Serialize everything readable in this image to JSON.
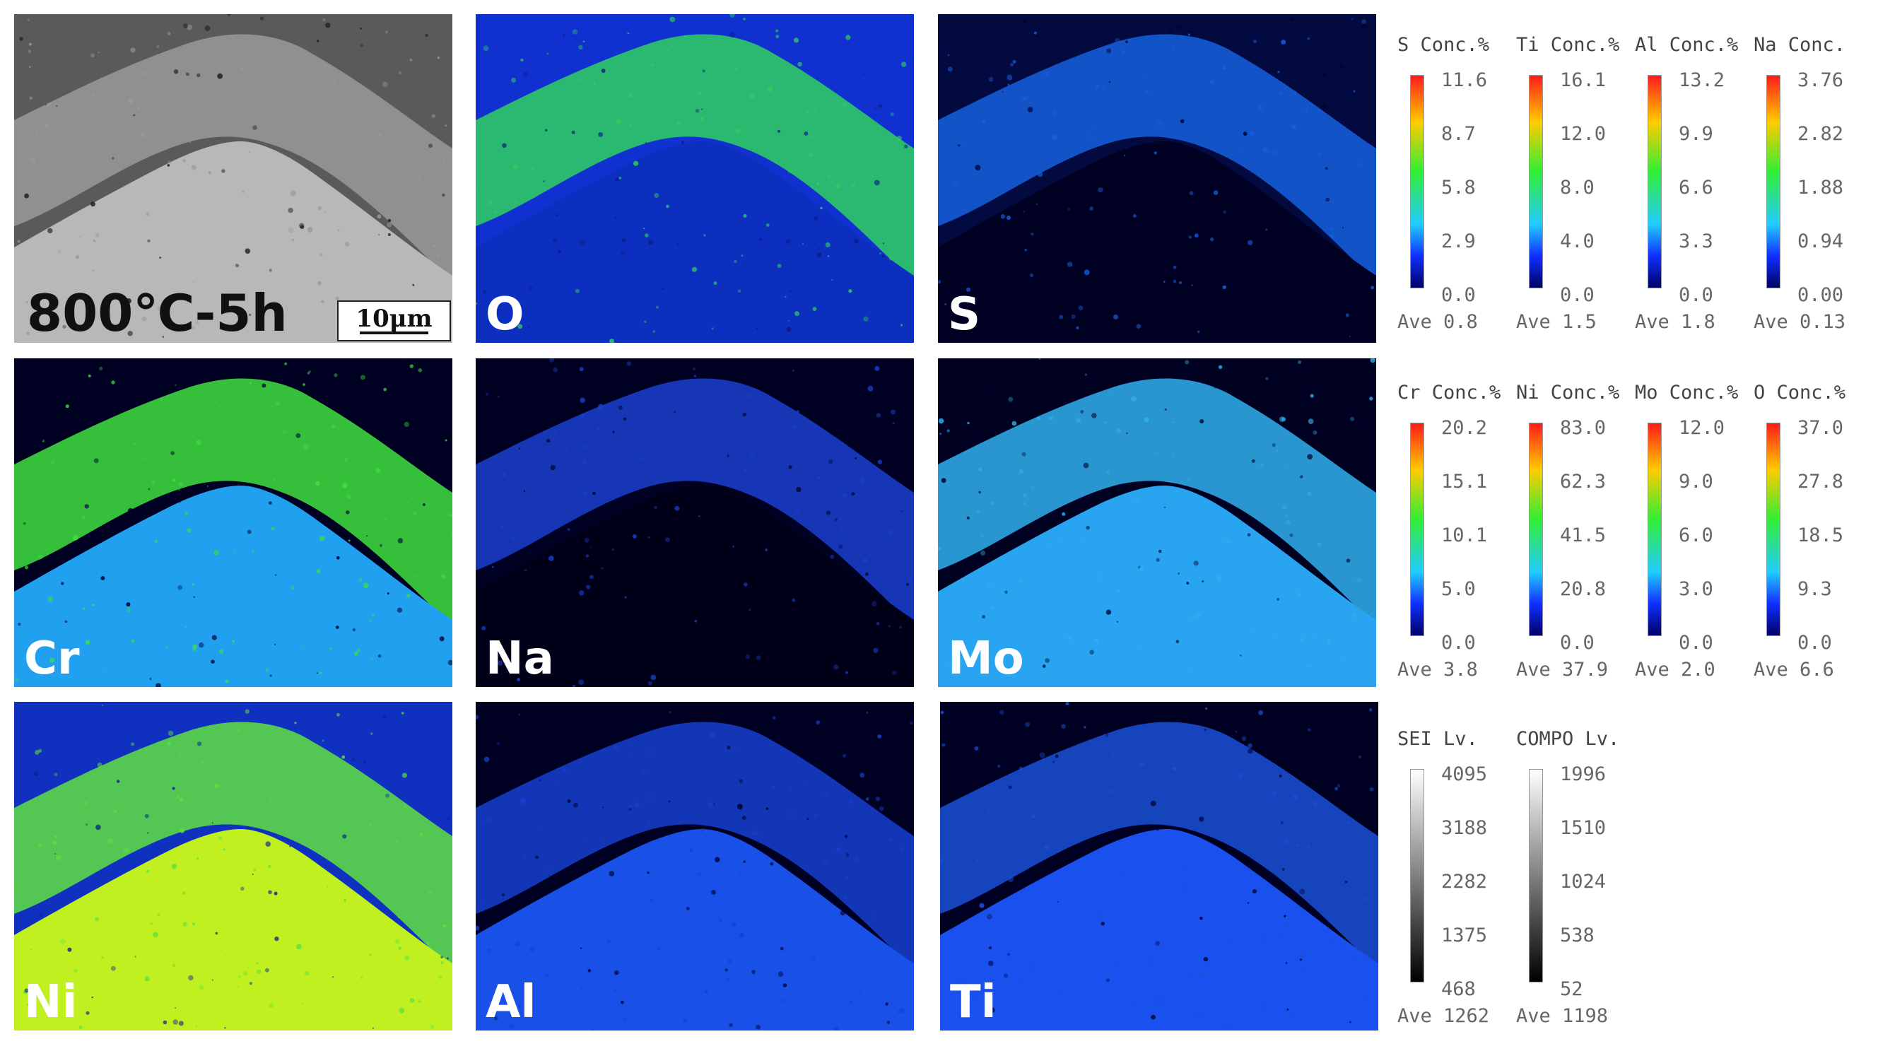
{
  "panels": [
    {
      "label": "800℃-5h",
      "scale_bar": "10μm",
      "palette": "sem"
    },
    {
      "label": "O",
      "palette": "o"
    },
    {
      "label": "S",
      "palette": "s"
    },
    {
      "label": "Cr",
      "palette": "cr"
    },
    {
      "label": "Na",
      "palette": "na"
    },
    {
      "label": "Mo",
      "palette": "mo"
    },
    {
      "label": "Ni",
      "palette": "ni"
    },
    {
      "label": "Al",
      "palette": "al"
    },
    {
      "label": "Ti",
      "palette": "ti"
    }
  ],
  "legends": {
    "row1": [
      {
        "title": "S Conc.%",
        "ticks": [
          "11.6",
          "8.7",
          "5.8",
          "2.9",
          "0.0"
        ],
        "ave": "Ave 0.8"
      },
      {
        "title": "Ti Conc.%",
        "ticks": [
          "16.1",
          "12.0",
          "8.0",
          "4.0",
          "0.0"
        ],
        "ave": "Ave 1.5"
      },
      {
        "title": "Al Conc.%",
        "ticks": [
          "13.2",
          "9.9",
          "6.6",
          "3.3",
          "0.0"
        ],
        "ave": "Ave 1.8"
      },
      {
        "title": "Na Conc.",
        "ticks": [
          "3.76",
          "2.82",
          "1.88",
          "0.94",
          "0.00"
        ],
        "ave": "Ave 0.13"
      }
    ],
    "row2": [
      {
        "title": "Cr Conc.%",
        "ticks": [
          "20.2",
          "15.1",
          "10.1",
          "5.0",
          "0.0"
        ],
        "ave": "Ave 3.8"
      },
      {
        "title": "Ni Conc.%",
        "ticks": [
          "83.0",
          "62.3",
          "41.5",
          "20.8",
          "0.0"
        ],
        "ave": "Ave 37.9"
      },
      {
        "title": "Mo Conc.%",
        "ticks": [
          "12.0",
          "9.0",
          "6.0",
          "3.0",
          "0.0"
        ],
        "ave": "Ave 2.0"
      },
      {
        "title": "O Conc.%",
        "ticks": [
          "37.0",
          "27.8",
          "18.5",
          "9.3",
          "0.0"
        ],
        "ave": "Ave 6.6"
      }
    ],
    "row3": [
      {
        "title": "SEI Lv.",
        "ticks": [
          "4095",
          "3188",
          "2282",
          "1375",
          "468"
        ],
        "ave": "Ave 1262"
      },
      {
        "title": "COMPO Lv.",
        "ticks": [
          "1996",
          "1510",
          "1024",
          "538",
          "52"
        ],
        "ave": "Ave 1198"
      }
    ]
  },
  "colors": {
    "sem": {
      "top": "#5a5a5a",
      "mid": "#9a9a9a",
      "core": "#b8b8b8",
      "dark": "#1a1a1a"
    },
    "o": {
      "top": "#1030d0",
      "mid": "#30d060",
      "core": "#0c2fc0",
      "dark": "#0a1a80"
    },
    "s": {
      "top": "#020a40",
      "mid": "#1560e0",
      "core": "#000022",
      "dark": "#000033"
    },
    "cr": {
      "top": "#000022",
      "mid": "#40e040",
      "core": "#20a0ee",
      "dark": "#000033"
    },
    "na": {
      "top": "#000022",
      "mid": "#1a40d0",
      "core": "#000018",
      "dark": "#000020"
    },
    "mo": {
      "top": "#000020",
      "mid": "#30b0f0",
      "core": "#28a4f0",
      "dark": "#000030"
    },
    "ni": {
      "top": "#1030c0",
      "mid": "#60e040",
      "core": "#c0f020",
      "dark": "#0a2090"
    },
    "al": {
      "top": "#000022",
      "mid": "#1540d0",
      "core": "#1850e8",
      "dark": "#000030"
    },
    "ti": {
      "top": "#000022",
      "mid": "#1a50d8",
      "core": "#1a50ee",
      "dark": "#000030"
    }
  }
}
